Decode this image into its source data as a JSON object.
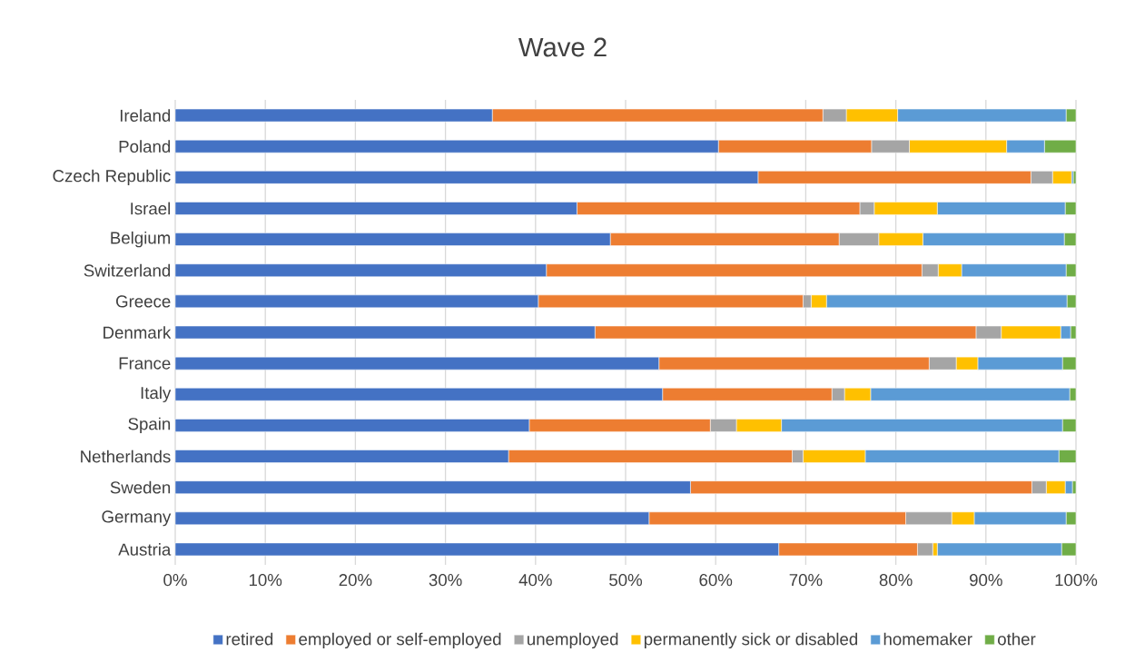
{
  "chart_data": {
    "type": "bar",
    "title": "Wave 2",
    "orientation": "horizontal",
    "stacked": true,
    "categories": [
      "Ireland",
      "Poland",
      "Czech Republic",
      "Israel",
      "Belgium",
      "Switzerland",
      "Greece",
      "Denmark",
      "France",
      "Italy",
      "Spain",
      "Netherlands",
      "Sweden",
      "Germany",
      "Austria"
    ],
    "series": [
      {
        "name": "retired",
        "color": "#4472c4",
        "values": [
          35.2,
          60.3,
          64.7,
          44.6,
          48.3,
          41.2,
          40.3,
          46.6,
          53.7,
          54.1,
          39.3,
          37.0,
          57.2,
          52.6,
          67.0
        ]
      },
      {
        "name": "employed or self-employed",
        "color": "#ed7d31",
        "values": [
          36.7,
          17.0,
          30.3,
          31.4,
          25.4,
          41.7,
          29.4,
          42.3,
          30.0,
          18.8,
          20.1,
          31.5,
          37.9,
          28.5,
          15.4
        ]
      },
      {
        "name": "unemployed",
        "color": "#a5a5a5",
        "values": [
          2.6,
          4.2,
          2.4,
          1.6,
          4.4,
          1.8,
          0.9,
          2.8,
          3.0,
          1.4,
          2.9,
          1.2,
          1.6,
          5.1,
          1.7
        ]
      },
      {
        "name": "permanently sick or disabled",
        "color": "#ffc000",
        "values": [
          5.7,
          10.8,
          2.1,
          7.0,
          4.9,
          2.6,
          1.7,
          6.6,
          2.4,
          2.9,
          5.0,
          6.9,
          2.1,
          2.5,
          0.5
        ]
      },
      {
        "name": "homemaker",
        "color": "#5b9bd5",
        "values": [
          18.7,
          4.2,
          0.2,
          14.2,
          15.7,
          11.6,
          26.7,
          1.1,
          9.4,
          22.1,
          31.2,
          21.5,
          0.8,
          10.2,
          13.8
        ]
      },
      {
        "name": "other",
        "color": "#70ad47",
        "values": [
          1.1,
          3.5,
          0.3,
          1.2,
          1.3,
          1.1,
          1.0,
          0.6,
          1.5,
          0.7,
          1.5,
          1.9,
          0.4,
          1.1,
          1.6
        ]
      }
    ],
    "xlim": [
      0,
      100
    ],
    "xticks": [
      {
        "value": 0,
        "label": "0%"
      },
      {
        "value": 10,
        "label": "10%"
      },
      {
        "value": 20,
        "label": "20%"
      },
      {
        "value": 30,
        "label": "30%"
      },
      {
        "value": 40,
        "label": "40%"
      },
      {
        "value": 50,
        "label": "50%"
      },
      {
        "value": 60,
        "label": "60%"
      },
      {
        "value": 70,
        "label": "70%"
      },
      {
        "value": 80,
        "label": "80%"
      },
      {
        "value": 90,
        "label": "90%"
      },
      {
        "value": 100,
        "label": "100%"
      }
    ],
    "grid": "x",
    "legend": "bottom"
  }
}
